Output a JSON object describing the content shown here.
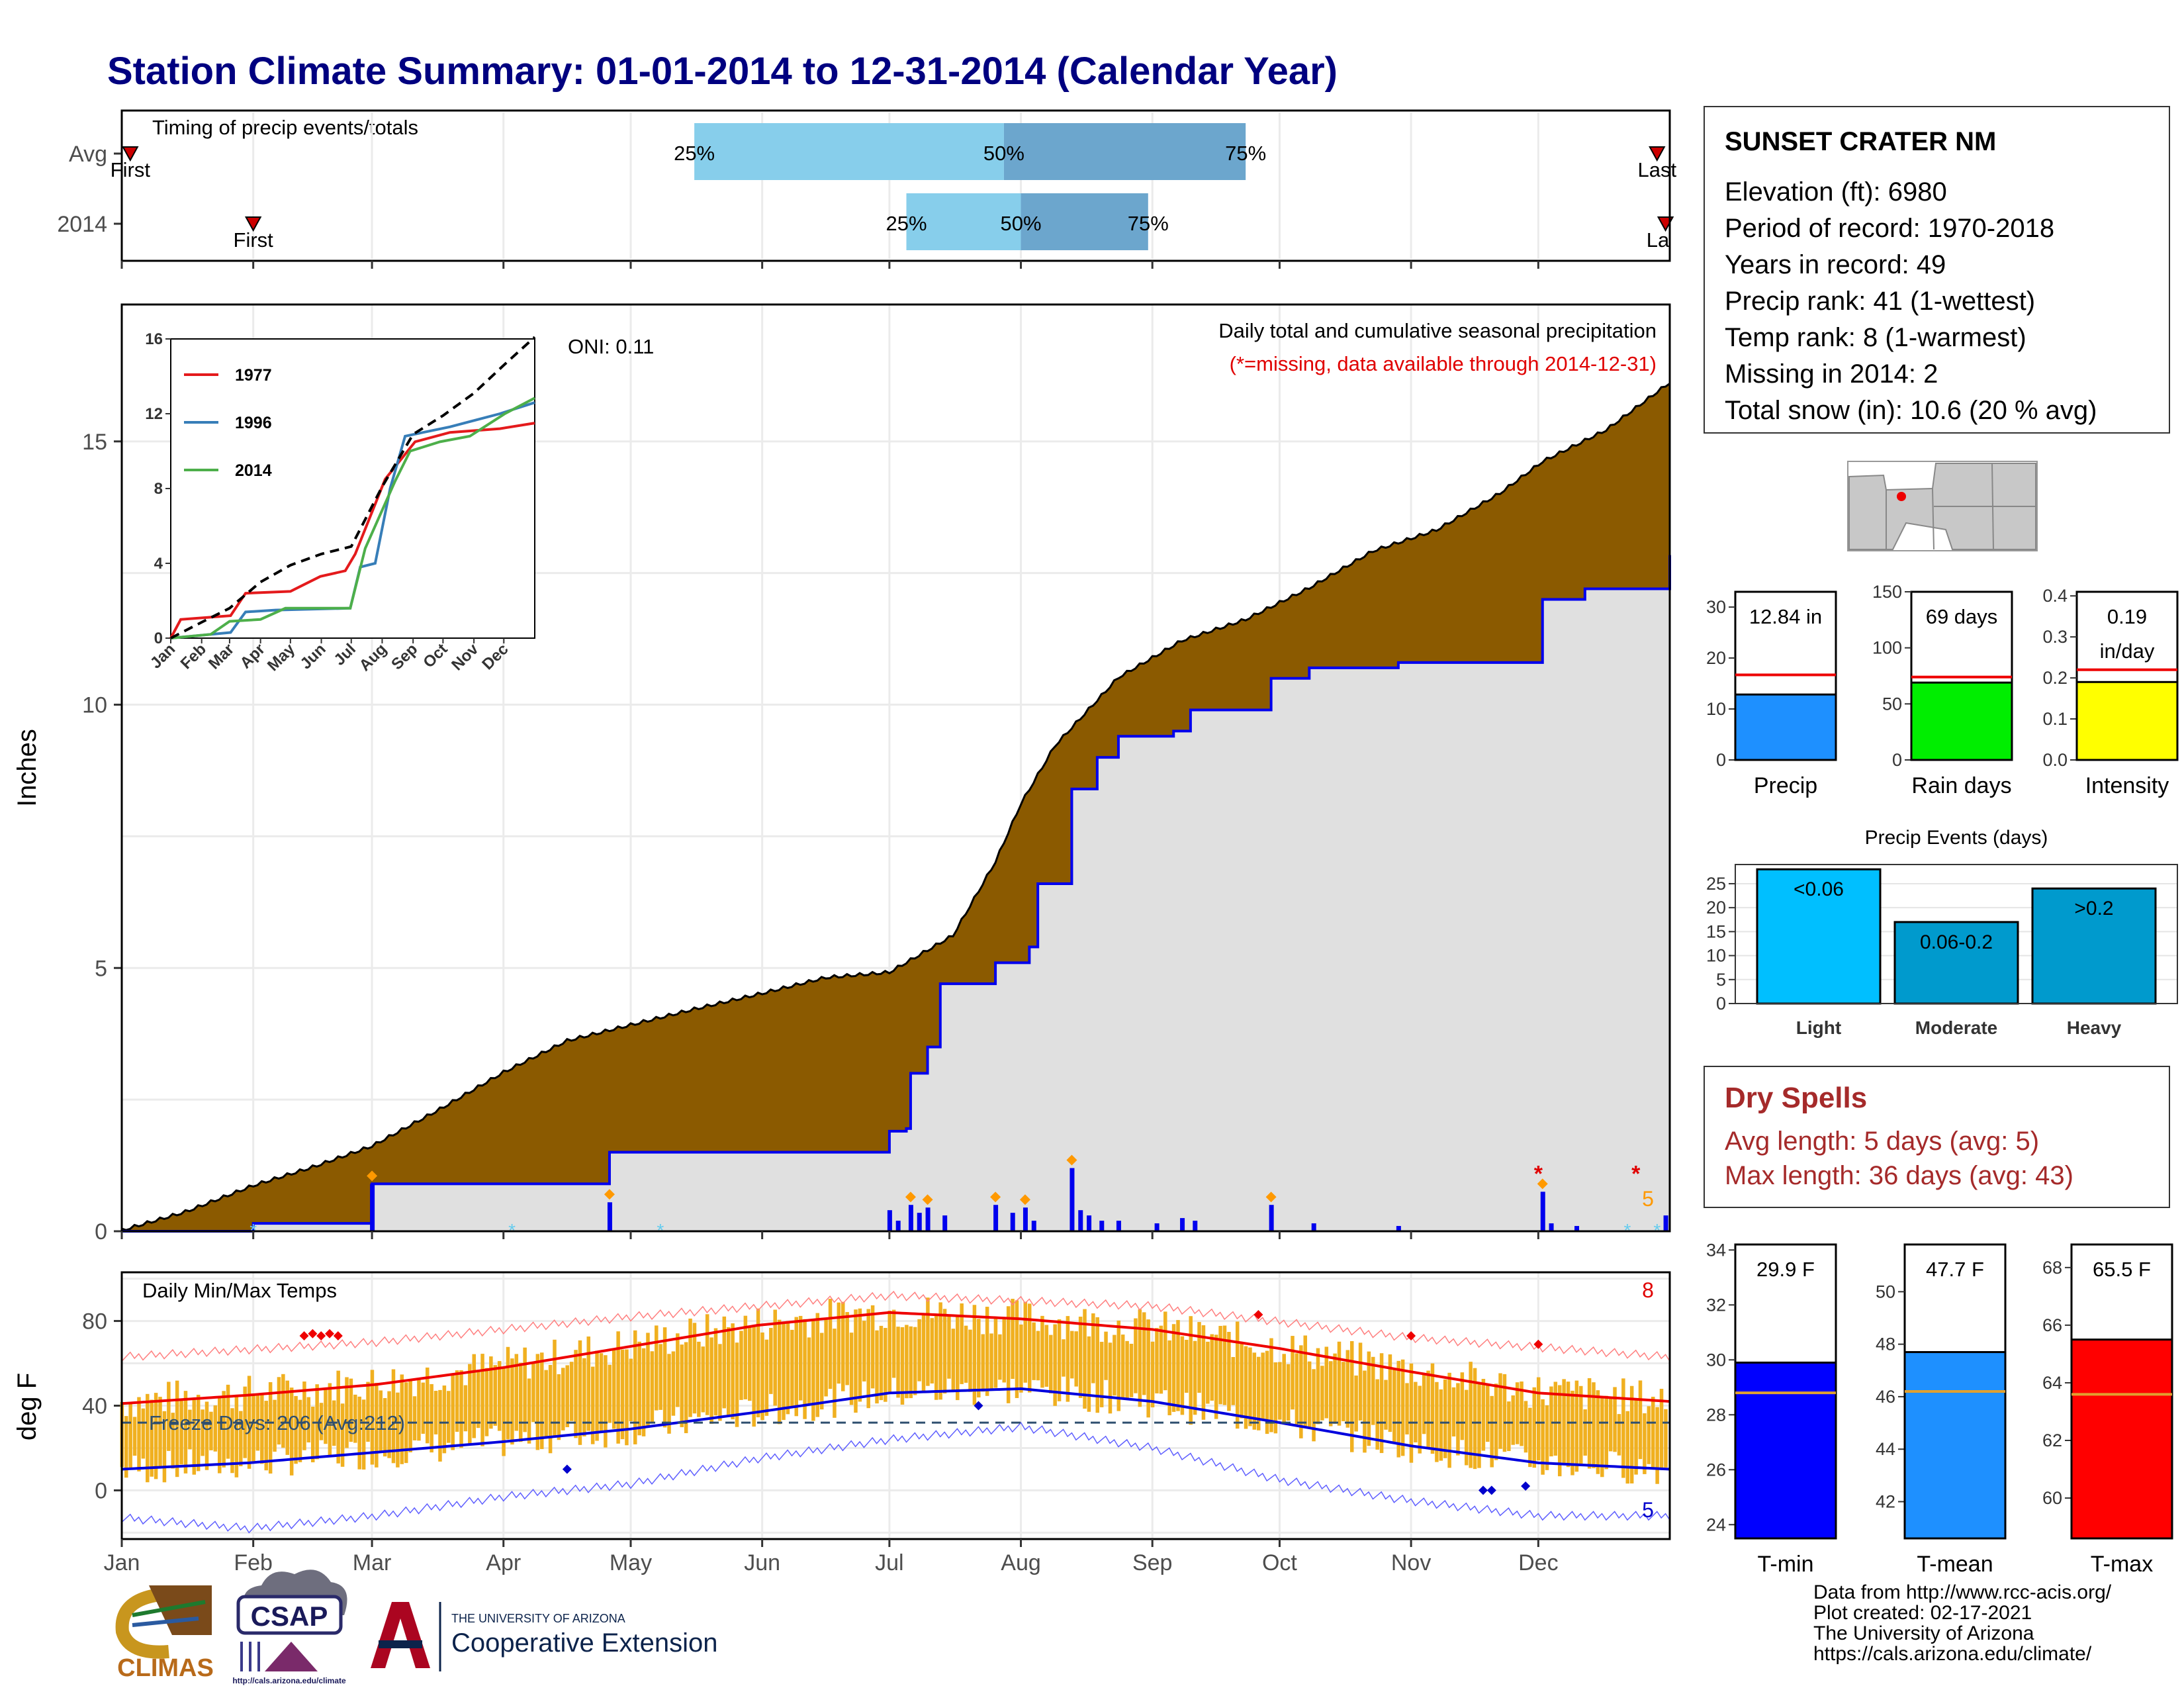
{
  "page": {
    "title": "Station Climate Summary: 01-01-2014 to 12-31-2014 (Calendar Year)"
  },
  "timing": {
    "title": "Timing of precip events/totals",
    "rows": [
      {
        "label": "Avg",
        "first": "First",
        "last": "Last",
        "p25": "25%",
        "p50": "50%",
        "p75": "75%"
      },
      {
        "label": "2014",
        "first": "First",
        "last": "La",
        "p25": "25%",
        "p50": "50%",
        "p75": "75%"
      }
    ]
  },
  "precip_panel": {
    "annotation": "Daily total and cumulative seasonal precipitation",
    "missing_note": "(*=missing, data available through 2014-12-31)",
    "oni": "ONI: 0.11",
    "y_label": "Inches",
    "missing_count": "5"
  },
  "temp_panel": {
    "title": "Daily Min/Max Temps",
    "y_label": "deg F",
    "freeze": "Freeze Days: 206 (Avg:212)",
    "hot_count": "8",
    "cold_count": "5"
  },
  "station": {
    "name": "SUNSET CRATER NM",
    "lines": [
      "Elevation (ft): 6980",
      "Period of record: 1970-2018",
      "Years in record: 49",
      "Precip rank: 41 (1-wettest)",
      "Temp rank: 8 (1-warmest)",
      "Missing in 2014: 2",
      "Total snow (in): 10.6 (20 % avg)"
    ]
  },
  "dry_spells": {
    "title": "Dry Spells",
    "avg": "Avg length: 5 days (avg: 5)",
    "max": "Max length: 36 days (avg: 43)"
  },
  "credits": [
    "Data from http://www.rcc-acis.org/",
    "Plot created: 02-17-2021",
    "The University of Arizona",
    "https://cals.arizona.edu/climate/"
  ],
  "logos": {
    "climas": "CLIMAS",
    "csap": "CSAP",
    "csap_url": "http://cals.arizona.edu/climate",
    "ua_small": "THE UNIVERSITY OF ARIZONA",
    "ua_big": "Cooperative Extension"
  },
  "colors": {
    "title": "#000080",
    "cum_fill": "#8b5a00",
    "cum_2014_fill": "#e0e0e0",
    "precip_blue": "#0000ee",
    "temp_bar": "#f0b020",
    "tmax_line": "#ee0000",
    "tmin_line": "#0000dd"
  },
  "chart_data": [
    {
      "id": "timing",
      "type": "bar",
      "title": "Timing of precip events/totals",
      "categories": [
        "Avg",
        "2014"
      ],
      "x_axis": "day of year",
      "series": [
        {
          "name": "Avg",
          "first": "Jan 3",
          "p25": "May 16",
          "p50": "Jul 28",
          "p75": "Sep 23",
          "last": "Dec 29"
        },
        {
          "name": "2014",
          "first": "Feb 1",
          "p25": "Jul 5",
          "p50": "Aug 1",
          "p75": "Aug 31",
          "last": "Dec 31"
        }
      ]
    },
    {
      "id": "cumulative_precip",
      "type": "area",
      "title": "Daily total and cumulative seasonal precipitation",
      "ylabel": "Inches",
      "x_ticks": [
        "Jan",
        "Feb",
        "Mar",
        "Apr",
        "May",
        "Jun",
        "Jul",
        "Aug",
        "Sep",
        "Oct",
        "Nov",
        "Dec"
      ],
      "y_ticks": [
        0,
        5,
        10,
        15
      ],
      "ylim": [
        0,
        17.6
      ],
      "series": [
        {
          "name": "Average cumulative",
          "points": [
            [
              0,
              0
            ],
            [
              15,
              0.35
            ],
            [
              31,
              0.85
            ],
            [
              45,
              1.2
            ],
            [
              59,
              1.6
            ],
            [
              75,
              2.3
            ],
            [
              90,
              3.0
            ],
            [
              105,
              3.6
            ],
            [
              120,
              3.9
            ],
            [
              135,
              4.2
            ],
            [
              151,
              4.5
            ],
            [
              166,
              4.8
            ],
            [
              181,
              4.9
            ],
            [
              196,
              5.6
            ],
            [
              206,
              7.0
            ],
            [
              212,
              8.1
            ],
            [
              220,
              9.2
            ],
            [
              235,
              10.5
            ],
            [
              250,
              11.2
            ],
            [
              265,
              11.6
            ],
            [
              280,
              12.2
            ],
            [
              295,
              12.9
            ],
            [
              310,
              13.3
            ],
            [
              325,
              14.0
            ],
            [
              335,
              14.6
            ],
            [
              350,
              15.2
            ],
            [
              365,
              16.1
            ]
          ]
        },
        {
          "name": "2014 cumulative",
          "points": [
            [
              0,
              0
            ],
            [
              31,
              0.15
            ],
            [
              58,
              0.15
            ],
            [
              59,
              0.9
            ],
            [
              90,
              0.9
            ],
            [
              114,
              0.9
            ],
            [
              115,
              1.5
            ],
            [
              180,
              1.5
            ],
            [
              181,
              1.9
            ],
            [
              185,
              1.95
            ],
            [
              186,
              3.0
            ],
            [
              190,
              3.5
            ],
            [
              193,
              4.7
            ],
            [
              205,
              4.7
            ],
            [
              206,
              5.1
            ],
            [
              214,
              5.4
            ],
            [
              216,
              6.6
            ],
            [
              223,
              6.6
            ],
            [
              224,
              8.4
            ],
            [
              230,
              9.0
            ],
            [
              235,
              9.4
            ],
            [
              248,
              9.5
            ],
            [
              252,
              9.9
            ],
            [
              270,
              9.9
            ],
            [
              271,
              10.5
            ],
            [
              280,
              10.7
            ],
            [
              300,
              10.7
            ],
            [
              301,
              10.8
            ],
            [
              334,
              10.8
            ],
            [
              335,
              12.0
            ],
            [
              345,
              12.2
            ],
            [
              365,
              12.84
            ]
          ]
        }
      ],
      "daily_precip": [
        {
          "x": 59,
          "y": 0.9
        },
        {
          "x": 115,
          "y": 0.55
        },
        {
          "x": 181,
          "y": 0.4
        },
        {
          "x": 183,
          "y": 0.2
        },
        {
          "x": 186,
          "y": 0.5
        },
        {
          "x": 188,
          "y": 0.35
        },
        {
          "x": 190,
          "y": 0.45
        },
        {
          "x": 194,
          "y": 0.3
        },
        {
          "x": 206,
          "y": 0.5
        },
        {
          "x": 210,
          "y": 0.35
        },
        {
          "x": 213,
          "y": 0.45
        },
        {
          "x": 215,
          "y": 0.2
        },
        {
          "x": 224,
          "y": 1.2
        },
        {
          "x": 226,
          "y": 0.4
        },
        {
          "x": 228,
          "y": 0.3
        },
        {
          "x": 231,
          "y": 0.2
        },
        {
          "x": 235,
          "y": 0.2
        },
        {
          "x": 244,
          "y": 0.15
        },
        {
          "x": 250,
          "y": 0.25
        },
        {
          "x": 253,
          "y": 0.2
        },
        {
          "x": 271,
          "y": 0.5
        },
        {
          "x": 281,
          "y": 0.15
        },
        {
          "x": 301,
          "y": 0.1
        },
        {
          "x": 335,
          "y": 0.75
        },
        {
          "x": 337,
          "y": 0.15
        },
        {
          "x": 343,
          "y": 0.1
        },
        {
          "x": 364,
          "y": 0.3
        }
      ],
      "missing_days": [
        334,
        357
      ]
    },
    {
      "id": "inset_cumulative",
      "type": "line",
      "x_ticks": [
        "Jan",
        "Feb",
        "Mar",
        "Apr",
        "May",
        "Jun",
        "Jul",
        "Aug",
        "Sep",
        "Oct",
        "Nov",
        "Dec"
      ],
      "y_ticks": [
        0,
        4,
        8,
        12,
        16
      ],
      "ylim": [
        0,
        16
      ],
      "series": [
        {
          "name": "1977",
          "points": [
            [
              0,
              0
            ],
            [
              10,
              1.0
            ],
            [
              60,
              1.2
            ],
            [
              75,
              2.4
            ],
            [
              120,
              2.5
            ],
            [
              150,
              3.3
            ],
            [
              175,
              3.6
            ],
            [
              185,
              4.5
            ],
            [
              200,
              6.5
            ],
            [
              215,
              8.5
            ],
            [
              245,
              10.5
            ],
            [
              280,
              11.0
            ],
            [
              330,
              11.2
            ],
            [
              365,
              11.5
            ]
          ]
        },
        {
          "name": "1996",
          "points": [
            [
              0,
              0
            ],
            [
              60,
              0.3
            ],
            [
              75,
              1.4
            ],
            [
              105,
              1.5
            ],
            [
              180,
              1.6
            ],
            [
              190,
              3.8
            ],
            [
              205,
              4.0
            ],
            [
              220,
              8.0
            ],
            [
              235,
              10.8
            ],
            [
              280,
              11.3
            ],
            [
              330,
              12.0
            ],
            [
              365,
              12.6
            ]
          ]
        },
        {
          "name": "2014",
          "points": [
            [
              0,
              0
            ],
            [
              40,
              0.2
            ],
            [
              59,
              0.9
            ],
            [
              90,
              1.0
            ],
            [
              115,
              1.6
            ],
            [
              180,
              1.6
            ],
            [
              195,
              4.8
            ],
            [
              225,
              8.4
            ],
            [
              240,
              10.0
            ],
            [
              270,
              10.5
            ],
            [
              300,
              10.8
            ],
            [
              335,
              12.0
            ],
            [
              365,
              12.84
            ]
          ]
        },
        {
          "name": "Average",
          "points": [
            [
              0,
              0
            ],
            [
              31,
              0.85
            ],
            [
              59,
              1.6
            ],
            [
              90,
              3.0
            ],
            [
              120,
              3.9
            ],
            [
              151,
              4.5
            ],
            [
              181,
              4.9
            ],
            [
              212,
              8.1
            ],
            [
              243,
              10.9
            ],
            [
              273,
              11.9
            ],
            [
              304,
              13.1
            ],
            [
              334,
              14.6
            ],
            [
              365,
              16.1
            ]
          ]
        }
      ]
    },
    {
      "id": "daily_temps",
      "type": "line",
      "title": "Daily Min/Max Temps",
      "ylabel": "deg F",
      "y_ticks": [
        0,
        40,
        80
      ],
      "ylim": [
        -23,
        103
      ],
      "freeze_line": 32,
      "x_ticks": [
        "Jan",
        "Feb",
        "Mar",
        "Apr",
        "May",
        "Jun",
        "Jul",
        "Aug",
        "Sep",
        "Oct",
        "Nov",
        "Dec"
      ],
      "series": [
        {
          "name": "Normal max",
          "points": [
            [
              0,
              41
            ],
            [
              30,
              45
            ],
            [
              60,
              50
            ],
            [
              90,
              58
            ],
            [
              120,
              68
            ],
            [
              150,
              78
            ],
            [
              181,
              84
            ],
            [
              212,
              81
            ],
            [
              243,
              76
            ],
            [
              273,
              67
            ],
            [
              304,
              56
            ],
            [
              334,
              46
            ],
            [
              365,
              42
            ]
          ]
        },
        {
          "name": "Normal min",
          "points": [
            [
              0,
              10
            ],
            [
              30,
              13
            ],
            [
              60,
              18
            ],
            [
              90,
              23
            ],
            [
              120,
              29
            ],
            [
              150,
              37
            ],
            [
              181,
              46
            ],
            [
              212,
              48
            ],
            [
              243,
              42
            ],
            [
              273,
              32
            ],
            [
              304,
              21
            ],
            [
              334,
              13
            ],
            [
              365,
              10
            ]
          ]
        },
        {
          "name": "Record max",
          "points": [
            [
              0,
              63
            ],
            [
              60,
              70
            ],
            [
              120,
              82
            ],
            [
              181,
              92
            ],
            [
              243,
              87
            ],
            [
              304,
              72
            ],
            [
              365,
              63
            ]
          ]
        },
        {
          "name": "Record min",
          "points": [
            [
              0,
              -13
            ],
            [
              30,
              -18
            ],
            [
              60,
              -12
            ],
            [
              90,
              -3
            ],
            [
              120,
              3
            ],
            [
              150,
              15
            ],
            [
              181,
              24
            ],
            [
              212,
              30
            ],
            [
              243,
              20
            ],
            [
              273,
              5
            ],
            [
              304,
              -5
            ],
            [
              334,
              -12
            ],
            [
              365,
              -12
            ]
          ]
        }
      ]
    },
    {
      "id": "precip_summary",
      "type": "bar",
      "series": [
        {
          "name": "Precip",
          "value": 12.84,
          "label": "12.84 in",
          "avg": 16.7,
          "ylim": [
            0,
            33
          ],
          "y_ticks": [
            0,
            10,
            20,
            30
          ]
        },
        {
          "name": "Rain days",
          "value": 69,
          "label": "69 days",
          "avg": 74,
          "ylim": [
            0,
            150
          ],
          "y_ticks": [
            0,
            50,
            100,
            150
          ]
        },
        {
          "name": "Intensity",
          "value": 0.19,
          "label": "0.19 in/day",
          "avg": 0.22,
          "ylim": [
            0,
            0.41
          ],
          "y_ticks": [
            0.0,
            0.1,
            0.2,
            0.3,
            0.4
          ]
        }
      ]
    },
    {
      "id": "precip_events",
      "type": "bar",
      "title": "Precip Events (days)",
      "categories": [
        "Light",
        "Moderate",
        "Heavy"
      ],
      "bar_labels": [
        "<0.06",
        "0.06-0.2",
        ">0.2"
      ],
      "values": [
        28,
        17,
        24
      ],
      "ylim": [
        0,
        29
      ],
      "y_ticks": [
        0,
        5,
        10,
        15,
        20,
        25
      ]
    },
    {
      "id": "temp_summary",
      "type": "bar",
      "series": [
        {
          "name": "T-min",
          "value": 29.9,
          "label": "29.9 F",
          "avg": 28.8,
          "ylim": [
            23.5,
            34.2
          ],
          "y_ticks": [
            24,
            26,
            28,
            30,
            32,
            34
          ]
        },
        {
          "name": "T-mean",
          "value": 47.7,
          "label": "47.7 F",
          "avg": 46.2,
          "ylim": [
            40.6,
            51.8
          ],
          "y_ticks": [
            42,
            44,
            46,
            48,
            50
          ]
        },
        {
          "name": "T-max",
          "value": 65.5,
          "label": "65.5 F",
          "avg": 63.6,
          "ylim": [
            58.6,
            68.8
          ],
          "y_ticks": [
            60,
            62,
            64,
            66,
            68
          ]
        }
      ]
    }
  ]
}
